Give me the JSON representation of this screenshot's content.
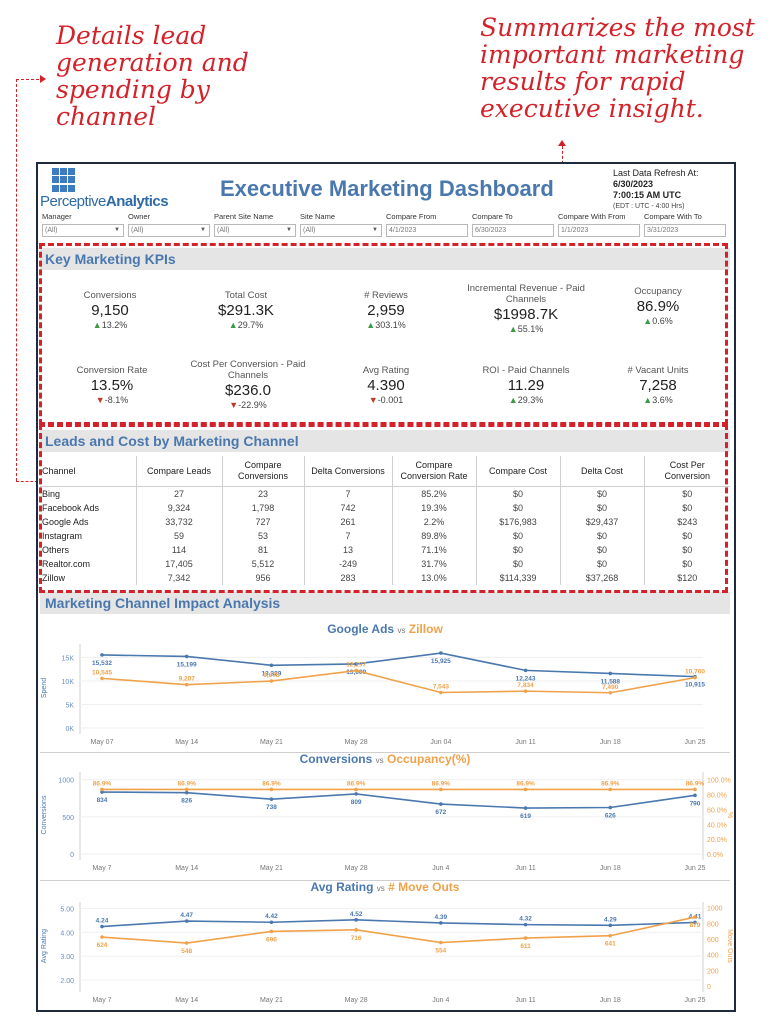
{
  "annotations": {
    "left": "Details lead generation and spending by channel",
    "right": "Summarizes the most important marketing results for rapid executive insight."
  },
  "header": {
    "logo_plain": "Perceptive",
    "logo_bold": "Analytics",
    "title": "Executive Marketing Dashboard",
    "refresh_label": "Last Data Refresh At:",
    "refresh_date": "6/30/2023",
    "refresh_time": "7:00:15 AM UTC",
    "refresh_tz": "(EDT : UTC - 4:00 Hrs)"
  },
  "filters": [
    {
      "label": "Manager",
      "value": "(All)",
      "dropdown": true
    },
    {
      "label": "Owner",
      "value": "(All)",
      "dropdown": true
    },
    {
      "label": "Parent Site Name",
      "value": "(All)",
      "dropdown": true
    },
    {
      "label": "Site Name",
      "value": "(All)",
      "dropdown": true
    },
    {
      "label": "Compare From",
      "value": "4/1/2023",
      "dropdown": false
    },
    {
      "label": "Compare To",
      "value": "6/30/2023",
      "dropdown": false
    },
    {
      "label": "Compare With From",
      "value": "1/1/2023",
      "dropdown": false
    },
    {
      "label": "Compare With To",
      "value": "3/31/2023",
      "dropdown": false
    }
  ],
  "kpi_section": {
    "title": "Key Marketing KPIs",
    "row1": [
      {
        "label": "Conversions",
        "value": "9,150",
        "dir": "up",
        "change": "13.2%"
      },
      {
        "label": "Total Cost",
        "value": "$291.3K",
        "dir": "up",
        "change": "29.7%"
      },
      {
        "label": "# Reviews",
        "value": "2,959",
        "dir": "up",
        "change": "303.1%"
      },
      {
        "label": "Incremental Revenue - Paid Channels",
        "value": "$1998.7K",
        "dir": "up",
        "change": "55.1%"
      },
      {
        "label": "Occupancy",
        "value": "86.9%",
        "dir": "up",
        "change": "0.6%"
      }
    ],
    "row2": [
      {
        "label": "Conversion Rate",
        "value": "13.5%",
        "dir": "down",
        "change": "-8.1%"
      },
      {
        "label": "Cost Per Conversion - Paid Channels",
        "value": "$236.0",
        "dir": "down",
        "change": "-22.9%"
      },
      {
        "label": "Avg Rating",
        "value": "4.390",
        "dir": "down",
        "change": "-0.001"
      },
      {
        "label": "ROI - Paid Channels",
        "value": "11.29",
        "dir": "up",
        "change": "29.3%"
      },
      {
        "label": "# Vacant Units",
        "value": "7,258",
        "dir": "up",
        "change": "3.6%"
      }
    ]
  },
  "leads_section": {
    "title": "Leads and Cost by Marketing Channel",
    "columns": [
      "Channel",
      "Compare Leads",
      "Compare Conversions",
      "Delta Conversions",
      "Compare Conversion Rate",
      "Compare Cost",
      "Delta Cost",
      "Cost Per Conversion"
    ],
    "rows": [
      [
        "Bing",
        "27",
        "23",
        "7",
        "85.2%",
        "$0",
        "$0",
        "$0"
      ],
      [
        "Facebook Ads",
        "9,324",
        "1,798",
        "742",
        "19.3%",
        "$0",
        "$0",
        "$0"
      ],
      [
        "Google Ads",
        "33,732",
        "727",
        "261",
        "2.2%",
        "$176,983",
        "$29,437",
        "$243"
      ],
      [
        "Instagram",
        "59",
        "53",
        "7",
        "89.8%",
        "$0",
        "$0",
        "$0"
      ],
      [
        "Others",
        "114",
        "81",
        "13",
        "71.1%",
        "$0",
        "$0",
        "$0"
      ],
      [
        "Realtor.com",
        "17,405",
        "5,512",
        "-249",
        "31.7%",
        "$0",
        "$0",
        "$0"
      ],
      [
        "Zillow",
        "7,342",
        "956",
        "283",
        "13.0%",
        "$114,339",
        "$37,268",
        "$120"
      ]
    ]
  },
  "impact_section": {
    "title": "Marketing Channel Impact Analysis",
    "vs": "vs"
  },
  "colors": {
    "blue": "#4a78ae",
    "orange": "#f0a24a",
    "red": "#d3222a"
  },
  "chart_data": [
    {
      "type": "line",
      "title_a": "Google Ads",
      "title_b": "Zillow",
      "ylabel": "Spend",
      "categories": [
        "May 07",
        "May 14",
        "May 21",
        "May 28",
        "Jun 04",
        "Jun 11",
        "Jun 18",
        "Jun 25"
      ],
      "series": [
        {
          "name": "Google Ads",
          "axis": "left",
          "values": [
            15532,
            15199,
            13329,
            13609,
            15925,
            12243,
            11588,
            10915
          ],
          "labels": [
            "15,532",
            "15,199",
            "13,329",
            "13,609",
            "15,925",
            "12,243",
            "11,588",
            "10,915"
          ]
        },
        {
          "name": "Zillow",
          "axis": "left",
          "values": [
            10545,
            9207,
            9975,
            12197,
            7543,
            7834,
            7490,
            10700
          ],
          "labels": [
            "10,545",
            "9,207",
            "9,975",
            "12,197",
            "7,543",
            "7,834",
            "7,490",
            "10,700"
          ]
        }
      ],
      "left_ticks": [
        0,
        5000,
        10000,
        15000
      ],
      "left_tick_labels": [
        "0K",
        "5K",
        "10K",
        "15K"
      ],
      "ylim": [
        0,
        17000
      ]
    },
    {
      "type": "line",
      "title_a": "Conversions",
      "title_b": "Occupancy(%)",
      "ylabel": "Conversions",
      "right_label": "%",
      "categories": [
        "May 7",
        "May 14",
        "May 21",
        "May 28",
        "Jun 4",
        "Jun 11",
        "Jun 18",
        "Jun 25"
      ],
      "series": [
        {
          "name": "Conversions",
          "axis": "left",
          "values": [
            834,
            826,
            738,
            809,
            672,
            619,
            626,
            790
          ],
          "labels": [
            "834",
            "826",
            "738",
            "809",
            "672",
            "619",
            "626",
            "790"
          ]
        },
        {
          "name": "Occupancy(%)",
          "axis": "right",
          "values": [
            86.9,
            86.9,
            86.9,
            86.9,
            86.9,
            86.9,
            86.9,
            86.9
          ],
          "labels": [
            "86.9%",
            "86.9%",
            "86.9%",
            "86.9%",
            "86.9%",
            "86.9%",
            "86.9%",
            "86.9%"
          ]
        }
      ],
      "left_ticks": [
        0,
        500,
        1000
      ],
      "left_tick_labels": [
        "0",
        "500",
        "1000"
      ],
      "ylim": [
        0,
        1050
      ],
      "right_ticks": [
        0,
        20,
        40,
        60,
        80,
        100
      ],
      "right_tick_labels": [
        "0.0%",
        "20.0%",
        "40.0%",
        "60.0%",
        "80.0%",
        "100.0%"
      ],
      "ylim_right": [
        0,
        105
      ]
    },
    {
      "type": "line",
      "title_a": "Avg Rating",
      "title_b": "# Move Outs",
      "ylabel": "Avg Rating",
      "right_label": "Move Outs",
      "categories": [
        "May 7",
        "May 14",
        "May 21",
        "May 28",
        "Jun 4",
        "Jun 11",
        "Jun 18",
        "Jun 25"
      ],
      "series": [
        {
          "name": "Avg Rating",
          "axis": "left",
          "values": [
            4.24,
            4.47,
            4.42,
            4.52,
            4.39,
            4.32,
            4.29,
            4.41
          ],
          "labels": [
            "4.24",
            "4.47",
            "4.42",
            "4.52",
            "4.39",
            "4.32",
            "4.29",
            "4.41"
          ]
        },
        {
          "name": "# Move Outs",
          "axis": "right",
          "values": [
            624,
            548,
            696,
            716,
            554,
            611,
            641,
            879
          ],
          "labels": [
            "624",
            "548",
            "696",
            "716",
            "554",
            "611",
            "641",
            "879"
          ]
        }
      ],
      "left_ticks": [
        2,
        3,
        4,
        5
      ],
      "left_tick_labels": [
        "2.00",
        "3.00",
        "4.00",
        "5.00"
      ],
      "ylim": [
        1.75,
        5.1
      ],
      "right_ticks": [
        0,
        200,
        400,
        600,
        800,
        1000
      ],
      "right_tick_labels": [
        "0",
        "200",
        "400",
        "600",
        "800",
        "1000"
      ],
      "ylim_right": [
        0,
        1020
      ]
    }
  ]
}
